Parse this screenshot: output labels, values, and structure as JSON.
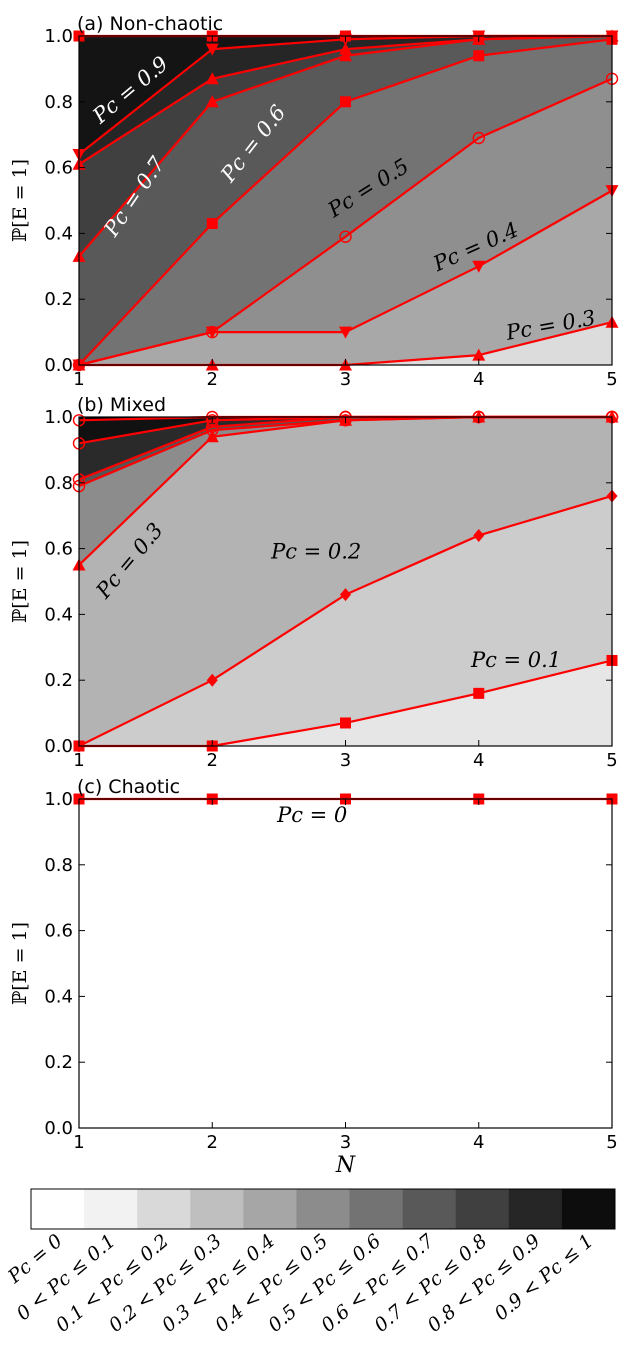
{
  "chart_data": [
    {
      "type": "area",
      "title": "(a)  Non-chaotic",
      "ylabel": "ℙ[E = 1]",
      "xlabel": "",
      "xlim": [
        1,
        5
      ],
      "ylim": [
        0,
        1
      ],
      "x": [
        1,
        2,
        3,
        4,
        5
      ],
      "xticks": [
        "1",
        "2",
        "3",
        "4",
        "5"
      ],
      "yticks": [
        "0.0",
        "0.2",
        "0.4",
        "0.6",
        "0.8",
        "1.0"
      ],
      "series": [
        {
          "name": "Pc = 0.3",
          "marker": "triangle-up",
          "values": [
            0.0,
            0.0,
            0.0,
            0.03,
            0.13
          ]
        },
        {
          "name": "Pc = 0.4",
          "marker": "triangle-down",
          "values": [
            0.0,
            0.1,
            0.1,
            0.3,
            0.53
          ]
        },
        {
          "name": "Pc = 0.5",
          "marker": "circle",
          "values": [
            0.0,
            0.1,
            0.39,
            0.69,
            0.87
          ]
        },
        {
          "name": "Pc = 0.6",
          "marker": "square",
          "values": [
            0.0,
            0.43,
            0.8,
            0.94,
            0.99
          ]
        },
        {
          "name": "Pc = 0.7",
          "marker": "triangle-up",
          "values": [
            0.33,
            0.8,
            0.94,
            0.99,
            1.0
          ]
        },
        {
          "name": "",
          "marker": "triangle-up",
          "values": [
            0.61,
            0.87,
            0.96,
            0.99,
            1.0
          ]
        },
        {
          "name": "",
          "marker": "triangle-down",
          "values": [
            0.64,
            0.96,
            0.99,
            1.0,
            1.0
          ]
        },
        {
          "name": "Pc = 0.9",
          "marker": "square",
          "values": [
            1.0,
            1.0,
            1.0,
            1.0,
            1.0
          ]
        }
      ],
      "labels": [
        {
          "text": "Pc = 0.9",
          "x": 1.42,
          "y": 0.82,
          "rotate": -40,
          "color": "#ffffff"
        },
        {
          "text": "Pc = 0.7",
          "x": 1.46,
          "y": 0.5,
          "rotate": -56,
          "color": "#ffffff"
        },
        {
          "text": "Pc = 0.6",
          "x": 2.35,
          "y": 0.66,
          "rotate": -52,
          "color": "#ffffff"
        },
        {
          "text": "Pc = 0.5",
          "x": 3.2,
          "y": 0.52,
          "rotate": -32,
          "color": "#000000"
        },
        {
          "text": "Pc = 0.4",
          "x": 4.0,
          "y": 0.34,
          "rotate": -24,
          "color": "#000000"
        },
        {
          "text": "Pc = 0.3",
          "x": 4.55,
          "y": 0.1,
          "rotate": -10,
          "color": "#000000"
        }
      ]
    },
    {
      "type": "area",
      "title": "(b)  Mixed",
      "ylabel": "ℙ[E = 1]",
      "xlabel": "",
      "xlim": [
        1,
        5
      ],
      "ylim": [
        0,
        1
      ],
      "x": [
        1,
        2,
        3,
        4,
        5
      ],
      "xticks": [
        "1",
        "2",
        "3",
        "4",
        "5"
      ],
      "yticks": [
        "0.0",
        "0.2",
        "0.4",
        "0.6",
        "0.8",
        "1.0"
      ],
      "series": [
        {
          "name": "Pc = 0.1",
          "marker": "square",
          "values": [
            0.0,
            0.0,
            0.07,
            0.16,
            0.26
          ]
        },
        {
          "name": "Pc = 0.2",
          "marker": "diamond",
          "values": [
            0.0,
            0.2,
            0.46,
            0.64,
            0.76
          ]
        },
        {
          "name": "Pc = 0.3",
          "marker": "triangle-up",
          "values": [
            0.55,
            0.94,
            0.99,
            1.0,
            1.0
          ]
        },
        {
          "name": "",
          "marker": "circle",
          "values": [
            0.79,
            0.96,
            0.99,
            1.0,
            1.0
          ]
        },
        {
          "name": "",
          "marker": "circle",
          "values": [
            0.81,
            0.97,
            1.0,
            1.0,
            1.0
          ]
        },
        {
          "name": "",
          "marker": "circle",
          "values": [
            0.92,
            0.99,
            1.0,
            1.0,
            1.0
          ]
        },
        {
          "name": "",
          "marker": "circle",
          "values": [
            0.99,
            1.0,
            1.0,
            1.0,
            1.0
          ]
        }
      ],
      "labels": [
        {
          "text": "Pc = 0.3",
          "x": 1.42,
          "y": 0.55,
          "rotate": -50,
          "color": "#000000"
        },
        {
          "text": "Pc = 0.2",
          "x": 2.78,
          "y": 0.57,
          "rotate": 0,
          "color": "#000000"
        },
        {
          "text": "Pc = 0.1",
          "x": 4.28,
          "y": 0.24,
          "rotate": 0,
          "color": "#000000"
        }
      ]
    },
    {
      "type": "area",
      "title": "(c)  Chaotic",
      "ylabel": "ℙ[E = 1]",
      "xlabel": "N",
      "xlim": [
        1,
        5
      ],
      "ylim": [
        0,
        1
      ],
      "x": [
        1,
        2,
        3,
        4,
        5
      ],
      "xticks": [
        "1",
        "2",
        "3",
        "4",
        "5"
      ],
      "yticks": [
        "0.0",
        "0.2",
        "0.4",
        "0.6",
        "0.8",
        "1.0"
      ],
      "series": [
        {
          "name": "Pc = 0",
          "marker": "square",
          "values": [
            1.0,
            1.0,
            1.0,
            1.0,
            1.0
          ]
        }
      ],
      "labels": [
        {
          "text": "Pc = 0",
          "x": 2.75,
          "y": 0.93,
          "rotate": 0,
          "color": "#000000"
        }
      ]
    }
  ],
  "colorbar": {
    "colors": [
      "#ffffff",
      "#f2f2f2",
      "#d9d9d9",
      "#bfbfbf",
      "#a6a6a6",
      "#8c8c8c",
      "#737373",
      "#595959",
      "#404040",
      "#262626",
      "#0d0d0d"
    ],
    "labels": [
      "Pc = 0",
      "0 < Pc ≤ 0.1",
      "0.1 < Pc ≤ 0.2",
      "0.2 < Pc ≤ 0.3",
      "0.3 < Pc ≤ 0.4",
      "0.4 < Pc ≤ 0.5",
      "0.5 < Pc ≤ 0.6",
      "0.6 < Pc ≤ 0.7",
      "0.7 < Pc ≤ 0.8",
      "0.8 < Pc ≤ 0.9",
      "0.9 < Pc ≤ 1"
    ]
  },
  "colors": {
    "line": "#ff0000",
    "fills": [
      "#dcdcdc",
      "#a8a8a8",
      "#8f8f8f",
      "#737373",
      "#595959",
      "#404040",
      "#262626",
      "#141414",
      "#0a0a0a"
    ],
    "fills_mixed": [
      "#e6e6e6",
      "#cccccc",
      "#b3b3b3",
      "#8c8c8c",
      "#555555",
      "#2a2a2a",
      "#111111",
      "#000000"
    ]
  }
}
